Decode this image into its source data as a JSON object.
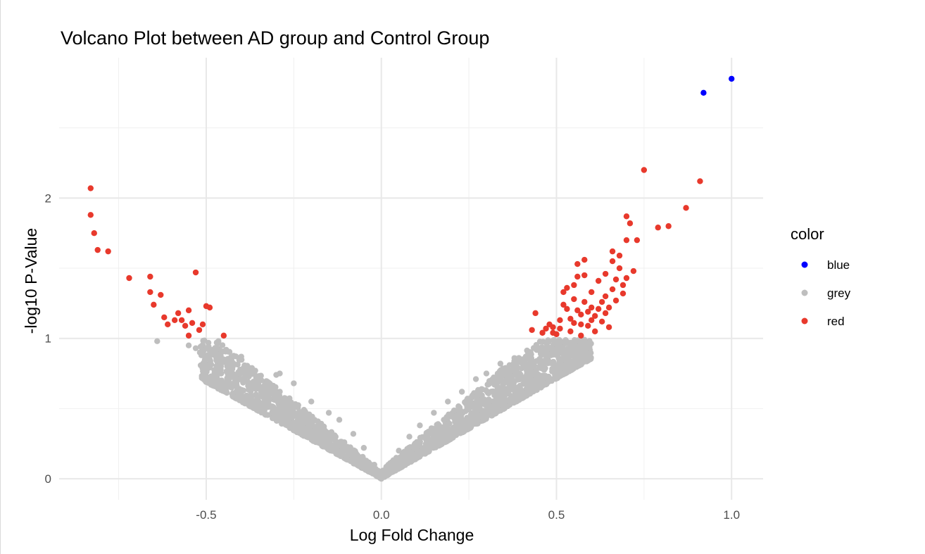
{
  "chart_data": {
    "type": "scatter",
    "title": "Volcano Plot between AD group and Control Group",
    "xlabel": "Log Fold Change",
    "ylabel": "-log10 P-Value",
    "xlim": [
      -0.92,
      1.09
    ],
    "ylim": [
      -0.15,
      3.0
    ],
    "x_ticks": [
      -0.5,
      0.0,
      0.5,
      1.0
    ],
    "x_tick_labels": [
      "-0.5",
      "0.0",
      "0.5",
      "1.0"
    ],
    "y_ticks": [
      0,
      1,
      2
    ],
    "y_tick_labels": [
      "0",
      "1",
      "2"
    ],
    "grid": true,
    "legend": {
      "title": "color",
      "placement": "right",
      "entries": [
        {
          "label": "blue",
          "color": "#0000ff"
        },
        {
          "label": "grey",
          "color": "#bebebe"
        },
        {
          "label": "red",
          "color": "#e8392c"
        }
      ]
    },
    "series": [
      {
        "name": "blue",
        "color": "#0000ff",
        "points": [
          [
            0.92,
            2.75
          ],
          [
            1.0,
            2.85
          ]
        ]
      },
      {
        "name": "grey",
        "color": "#bebebe",
        "note_x_range": [
          -0.65,
          0.6
        ],
        "points": [
          [
            -0.64,
            0.98
          ],
          [
            -0.55,
            0.95
          ],
          [
            -0.53,
            0.93
          ],
          [
            -0.51,
            0.9
          ],
          [
            -0.47,
            0.97
          ],
          [
            -0.45,
            0.85
          ],
          [
            -0.4,
            0.87
          ],
          [
            -0.36,
            0.77
          ],
          [
            -0.3,
            0.74
          ],
          [
            -0.29,
            0.75
          ],
          [
            -0.25,
            0.68
          ],
          [
            -0.2,
            0.55
          ],
          [
            -0.15,
            0.47
          ],
          [
            -0.12,
            0.42
          ],
          [
            -0.08,
            0.32
          ],
          [
            -0.05,
            0.22
          ],
          [
            -0.02,
            0.1
          ],
          [
            0.0,
            0.0
          ],
          [
            0.02,
            0.1
          ],
          [
            0.05,
            0.2
          ],
          [
            0.08,
            0.3
          ],
          [
            0.11,
            0.38
          ],
          [
            0.15,
            0.47
          ],
          [
            0.19,
            0.55
          ],
          [
            0.23,
            0.62
          ],
          [
            0.27,
            0.71
          ],
          [
            0.3,
            0.75
          ],
          [
            0.34,
            0.82
          ],
          [
            0.38,
            0.86
          ],
          [
            0.42,
            0.89
          ],
          [
            0.45,
            0.93
          ],
          [
            0.47,
            0.97
          ],
          [
            0.5,
            0.96
          ],
          [
            0.54,
            0.97
          ],
          [
            0.58,
            0.99
          ]
        ]
      },
      {
        "name": "red",
        "color": "#e8392c",
        "points": [
          [
            -0.83,
            2.07
          ],
          [
            -0.83,
            1.88
          ],
          [
            -0.82,
            1.75
          ],
          [
            -0.81,
            1.63
          ],
          [
            -0.78,
            1.62
          ],
          [
            -0.72,
            1.43
          ],
          [
            -0.66,
            1.44
          ],
          [
            -0.66,
            1.33
          ],
          [
            -0.65,
            1.24
          ],
          [
            -0.63,
            1.31
          ],
          [
            -0.62,
            1.15
          ],
          [
            -0.61,
            1.1
          ],
          [
            -0.59,
            1.13
          ],
          [
            -0.58,
            1.18
          ],
          [
            -0.57,
            1.13
          ],
          [
            -0.56,
            1.09
          ],
          [
            -0.55,
            1.02
          ],
          [
            -0.55,
            1.2
          ],
          [
            -0.54,
            1.11
          ],
          [
            -0.53,
            1.47
          ],
          [
            -0.52,
            1.06
          ],
          [
            -0.51,
            1.1
          ],
          [
            -0.5,
            1.23
          ],
          [
            -0.49,
            1.22
          ],
          [
            -0.45,
            1.02
          ],
          [
            0.44,
            1.18
          ],
          [
            0.43,
            1.06
          ],
          [
            0.46,
            1.04
          ],
          [
            0.47,
            1.07
          ],
          [
            0.48,
            1.1
          ],
          [
            0.49,
            1.04
          ],
          [
            0.49,
            1.08
          ],
          [
            0.5,
            1.03
          ],
          [
            0.51,
            1.13
          ],
          [
            0.51,
            1.07
          ],
          [
            0.52,
            1.24
          ],
          [
            0.52,
            1.33
          ],
          [
            0.53,
            1.21
          ],
          [
            0.53,
            1.36
          ],
          [
            0.54,
            1.05
          ],
          [
            0.54,
            1.14
          ],
          [
            0.55,
            1.28
          ],
          [
            0.55,
            1.38
          ],
          [
            0.55,
            1.11
          ],
          [
            0.56,
            1.2
          ],
          [
            0.56,
            1.44
          ],
          [
            0.56,
            1.53
          ],
          [
            0.57,
            1.02
          ],
          [
            0.57,
            1.1
          ],
          [
            0.57,
            1.17
          ],
          [
            0.58,
            1.26
          ],
          [
            0.58,
            1.56
          ],
          [
            0.58,
            1.45
          ],
          [
            0.59,
            1.09
          ],
          [
            0.59,
            1.19
          ],
          [
            0.6,
            1.13
          ],
          [
            0.6,
            1.22
          ],
          [
            0.6,
            1.33
          ],
          [
            0.61,
            1.05
          ],
          [
            0.61,
            1.16
          ],
          [
            0.62,
            1.21
          ],
          [
            0.62,
            1.41
          ],
          [
            0.63,
            1.12
          ],
          [
            0.63,
            1.26
          ],
          [
            0.64,
            1.18
          ],
          [
            0.64,
            1.3
          ],
          [
            0.64,
            1.46
          ],
          [
            0.65,
            1.08
          ],
          [
            0.65,
            1.22
          ],
          [
            0.66,
            1.35
          ],
          [
            0.66,
            1.55
          ],
          [
            0.66,
            1.62
          ],
          [
            0.67,
            1.27
          ],
          [
            0.67,
            1.42
          ],
          [
            0.68,
            1.5
          ],
          [
            0.68,
            1.59
          ],
          [
            0.69,
            1.38
          ],
          [
            0.69,
            1.32
          ],
          [
            0.7,
            1.43
          ],
          [
            0.7,
            1.7
          ],
          [
            0.7,
            1.87
          ],
          [
            0.71,
            1.82
          ],
          [
            0.72,
            1.48
          ],
          [
            0.73,
            1.7
          ],
          [
            0.75,
            2.2
          ],
          [
            0.79,
            1.79
          ],
          [
            0.82,
            1.8
          ],
          [
            0.87,
            1.93
          ],
          [
            0.91,
            2.12
          ]
        ]
      }
    ]
  }
}
